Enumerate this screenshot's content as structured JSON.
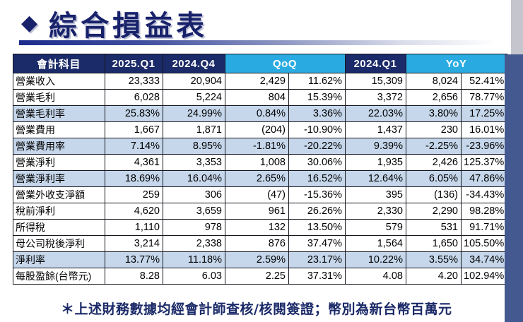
{
  "title": {
    "diamond": "◆",
    "text": "綜合損益表"
  },
  "footnote": "＊上述財務數據均經會計師查核/核閱簽證；幣別為新台幣百萬元",
  "colors": {
    "header_navy": "#1b2a68",
    "header_cyan": "#29abe2",
    "row_highlight": "#c6d7eb",
    "accent_navy": "#18226b",
    "side_band_blue": "#44598f",
    "side_band_gray": "#c5c5cd"
  },
  "table": {
    "headers": {
      "account": "會計科目",
      "q1_2025": "2025.Q1",
      "q4_2024": "2024.Q4",
      "qoq": "QoQ",
      "q1_2024": "2024.Q1",
      "yoy": "YoY"
    },
    "rows": [
      {
        "label": "營業收入",
        "v2025q1": "23,333",
        "v2024q4": "20,904",
        "qoq_diff": "2,429",
        "qoq_pct": "11.62%",
        "v2024q1": "15,309",
        "yoy_diff": "8,024",
        "yoy_pct": "52.41%",
        "highlight": false
      },
      {
        "label": "營業毛利",
        "v2025q1": "6,028",
        "v2024q4": "5,224",
        "qoq_diff": "804",
        "qoq_pct": "15.39%",
        "v2024q1": "3,372",
        "yoy_diff": "2,656",
        "yoy_pct": "78.77%",
        "highlight": false
      },
      {
        "label": "營業毛利率",
        "v2025q1": "25.83%",
        "v2024q4": "24.99%",
        "qoq_diff": "0.84%",
        "qoq_pct": "3.36%",
        "v2024q1": "22.03%",
        "yoy_diff": "3.80%",
        "yoy_pct": "17.25%",
        "highlight": true
      },
      {
        "label": "營業費用",
        "v2025q1": "1,667",
        "v2024q4": "1,871",
        "qoq_diff": "(204)",
        "qoq_pct": "-10.90%",
        "v2024q1": "1,437",
        "yoy_diff": "230",
        "yoy_pct": "16.01%",
        "highlight": false
      },
      {
        "label": "營業費用率",
        "v2025q1": "7.14%",
        "v2024q4": "8.95%",
        "qoq_diff": "-1.81%",
        "qoq_pct": "-20.22%",
        "v2024q1": "9.39%",
        "yoy_diff": "-2.25%",
        "yoy_pct": "-23.96%",
        "highlight": true
      },
      {
        "label": "營業淨利",
        "v2025q1": "4,361",
        "v2024q4": "3,353",
        "qoq_diff": "1,008",
        "qoq_pct": "30.06%",
        "v2024q1": "1,935",
        "yoy_diff": "2,426",
        "yoy_pct": "125.37%",
        "highlight": false
      },
      {
        "label": "營業淨利率",
        "v2025q1": "18.69%",
        "v2024q4": "16.04%",
        "qoq_diff": "2.65%",
        "qoq_pct": "16.52%",
        "v2024q1": "12.64%",
        "yoy_diff": "6.05%",
        "yoy_pct": "47.86%",
        "highlight": true
      },
      {
        "label": "營業外收支淨額",
        "v2025q1": "259",
        "v2024q4": "306",
        "qoq_diff": "(47)",
        "qoq_pct": "-15.36%",
        "v2024q1": "395",
        "yoy_diff": "(136)",
        "yoy_pct": "-34.43%",
        "highlight": false
      },
      {
        "label": "稅前淨利",
        "v2025q1": "4,620",
        "v2024q4": "3,659",
        "qoq_diff": "961",
        "qoq_pct": "26.26%",
        "v2024q1": "2,330",
        "yoy_diff": "2,290",
        "yoy_pct": "98.28%",
        "highlight": false
      },
      {
        "label": "所得稅",
        "v2025q1": "1,110",
        "v2024q4": "978",
        "qoq_diff": "132",
        "qoq_pct": "13.50%",
        "v2024q1": "579",
        "yoy_diff": "531",
        "yoy_pct": "91.71%",
        "highlight": false
      },
      {
        "label": "母公司稅後淨利",
        "v2025q1": "3,214",
        "v2024q4": "2,338",
        "qoq_diff": "876",
        "qoq_pct": "37.47%",
        "v2024q1": "1,564",
        "yoy_diff": "1,650",
        "yoy_pct": "105.50%",
        "highlight": false
      },
      {
        "label": "淨利率",
        "v2025q1": "13.77%",
        "v2024q4": "11.18%",
        "qoq_diff": "2.59%",
        "qoq_pct": "23.17%",
        "v2024q1": "10.22%",
        "yoy_diff": "3.55%",
        "yoy_pct": "34.74%",
        "highlight": true
      },
      {
        "label": "每股盈餘(台幣元)",
        "v2025q1": "8.28",
        "v2024q4": "6.03",
        "qoq_diff": "2.25",
        "qoq_pct": "37.31%",
        "v2024q1": "4.08",
        "yoy_diff": "4.20",
        "yoy_pct": "102.94%",
        "highlight": false
      }
    ]
  },
  "chart_data": {
    "type": "table",
    "title": "綜合損益表",
    "columns": [
      "會計科目",
      "2025.Q1",
      "2024.Q4",
      "QoQ差額",
      "QoQ%",
      "2024.Q1",
      "YoY差額",
      "YoY%"
    ],
    "unit": "新台幣百萬元",
    "rows": [
      [
        "營業收入",
        23333,
        20904,
        2429,
        "11.62%",
        15309,
        8024,
        "52.41%"
      ],
      [
        "營業毛利",
        6028,
        5224,
        804,
        "15.39%",
        3372,
        2656,
        "78.77%"
      ],
      [
        "營業毛利率",
        "25.83%",
        "24.99%",
        "0.84%",
        "3.36%",
        "22.03%",
        "3.80%",
        "17.25%"
      ],
      [
        "營業費用",
        1667,
        1871,
        -204,
        "-10.90%",
        1437,
        230,
        "16.01%"
      ],
      [
        "營業費用率",
        "7.14%",
        "8.95%",
        "-1.81%",
        "-20.22%",
        "9.39%",
        "-2.25%",
        "-23.96%"
      ],
      [
        "營業淨利",
        4361,
        3353,
        1008,
        "30.06%",
        1935,
        2426,
        "125.37%"
      ],
      [
        "營業淨利率",
        "18.69%",
        "16.04%",
        "2.65%",
        "16.52%",
        "12.64%",
        "6.05%",
        "47.86%"
      ],
      [
        "營業外收支淨額",
        259,
        306,
        -47,
        "-15.36%",
        395,
        -136,
        "-34.43%"
      ],
      [
        "稅前淨利",
        4620,
        3659,
        961,
        "26.26%",
        2330,
        2290,
        "98.28%"
      ],
      [
        "所得稅",
        1110,
        978,
        132,
        "13.50%",
        579,
        531,
        "91.71%"
      ],
      [
        "母公司稅後淨利",
        3214,
        2338,
        876,
        "37.47%",
        1564,
        1650,
        "105.50%"
      ],
      [
        "淨利率",
        "13.77%",
        "11.18%",
        "2.59%",
        "23.17%",
        "10.22%",
        "3.55%",
        "34.74%"
      ],
      [
        "每股盈餘(台幣元)",
        8.28,
        6.03,
        2.25,
        "37.31%",
        4.08,
        4.2,
        "102.94%"
      ]
    ]
  }
}
